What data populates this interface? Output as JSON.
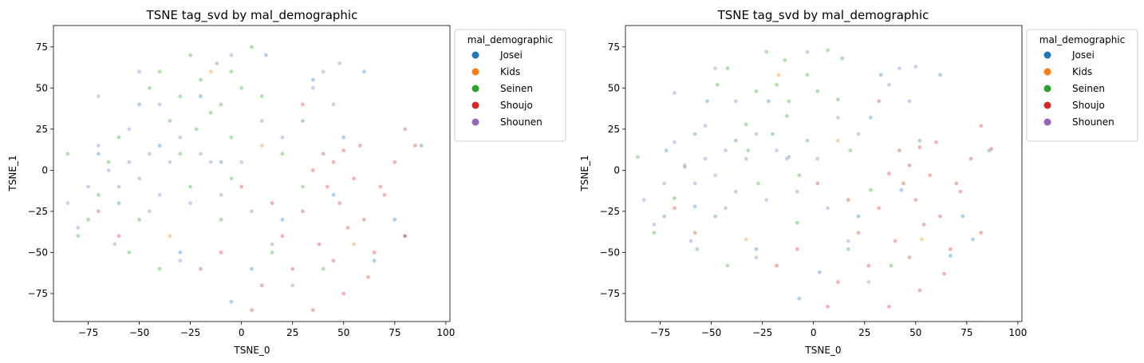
{
  "chart_data": [
    {
      "type": "scatter",
      "title": "TSNE tag_svd by mal_demographic",
      "xlabel": "TSNE_0",
      "ylabel": "TSNE_1",
      "xlim": [
        -92,
        102
      ],
      "ylim": [
        -92,
        88
      ],
      "xticks": [
        -75,
        -50,
        -25,
        0,
        25,
        50,
        75,
        100
      ],
      "yticks": [
        -75,
        -50,
        -25,
        0,
        25,
        50,
        75
      ],
      "grid": false,
      "legend": {
        "title": "mal_demographic",
        "placement": "outside-top-right"
      },
      "series": [
        {
          "name": "Josei",
          "color": "#1f77b4",
          "points": [
            [
              -10,
              5
            ],
            [
              20,
              -30
            ],
            [
              -40,
              15
            ],
            [
              35,
              55
            ],
            [
              5,
              -60
            ],
            [
              -60,
              -20
            ],
            [
              50,
              20
            ],
            [
              80,
              -40
            ],
            [
              -20,
              45
            ],
            [
              65,
              -55
            ],
            [
              12,
              70
            ],
            [
              -70,
              10
            ],
            [
              45,
              -15
            ],
            [
              30,
              30
            ],
            [
              -5,
              -80
            ],
            [
              88,
              15
            ],
            [
              -30,
              -50
            ],
            [
              60,
              60
            ],
            [
              -50,
              40
            ],
            [
              75,
              -30
            ]
          ]
        },
        {
          "name": "Kids",
          "color": "#ff7f0e",
          "points": [
            [
              -35,
              -40
            ],
            [
              10,
              15
            ],
            [
              55,
              -45
            ],
            [
              -15,
              60
            ]
          ]
        },
        {
          "name": "Seinen",
          "color": "#2ca02c",
          "points": [
            [
              -30,
              45
            ],
            [
              -20,
              55
            ],
            [
              -10,
              40
            ],
            [
              -25,
              70
            ],
            [
              -5,
              60
            ],
            [
              -40,
              60
            ],
            [
              -15,
              35
            ],
            [
              0,
              50
            ],
            [
              -35,
              30
            ],
            [
              5,
              75
            ],
            [
              -45,
              50
            ],
            [
              -22,
              25
            ],
            [
              -12,
              65
            ],
            [
              10,
              45
            ],
            [
              -60,
              20
            ],
            [
              -75,
              -30
            ],
            [
              -70,
              -15
            ],
            [
              -55,
              -50
            ],
            [
              -40,
              -60
            ],
            [
              -10,
              -30
            ],
            [
              15,
              -50
            ],
            [
              -80,
              -40
            ],
            [
              -65,
              5
            ],
            [
              30,
              -10
            ],
            [
              -50,
              -30
            ],
            [
              20,
              10
            ],
            [
              -25,
              -10
            ],
            [
              -5,
              -5
            ],
            [
              40,
              -60
            ],
            [
              -30,
              10
            ],
            [
              -85,
              10
            ],
            [
              -5,
              20
            ]
          ]
        },
        {
          "name": "Shoujo",
          "color": "#d62728",
          "points": [
            [
              40,
              10
            ],
            [
              45,
              5
            ],
            [
              50,
              12
            ],
            [
              35,
              0
            ],
            [
              55,
              -5
            ],
            [
              42,
              -10
            ],
            [
              48,
              -20
            ],
            [
              30,
              -25
            ],
            [
              60,
              -30
            ],
            [
              52,
              -35
            ],
            [
              38,
              -45
            ],
            [
              65,
              -50
            ],
            [
              80,
              -40
            ],
            [
              75,
              5
            ],
            [
              85,
              15
            ],
            [
              80,
              25
            ],
            [
              70,
              -15
            ],
            [
              58,
              15
            ],
            [
              62,
              -65
            ],
            [
              45,
              -55
            ],
            [
              25,
              -60
            ],
            [
              20,
              -40
            ],
            [
              15,
              -20
            ],
            [
              50,
              -75
            ],
            [
              10,
              -70
            ],
            [
              5,
              -85
            ],
            [
              0,
              -10
            ],
            [
              -10,
              -50
            ],
            [
              -20,
              -60
            ],
            [
              -60,
              -40
            ],
            [
              -70,
              -25
            ],
            [
              30,
              40
            ],
            [
              35,
              -85
            ],
            [
              68,
              -10
            ]
          ]
        },
        {
          "name": "Shounen",
          "color": "#9467bd",
          "points": [
            [
              -65,
              0
            ],
            [
              -55,
              5
            ],
            [
              -50,
              -5
            ],
            [
              -60,
              -10
            ],
            [
              -45,
              10
            ],
            [
              -40,
              -15
            ],
            [
              -70,
              15
            ],
            [
              -35,
              5
            ],
            [
              -30,
              20
            ],
            [
              -55,
              25
            ],
            [
              -75,
              -10
            ],
            [
              -45,
              -25
            ],
            [
              -25,
              -20
            ],
            [
              -15,
              5
            ],
            [
              -20,
              10
            ],
            [
              10,
              30
            ],
            [
              20,
              20
            ],
            [
              -10,
              -15
            ],
            [
              5,
              -25
            ],
            [
              35,
              50
            ],
            [
              40,
              60
            ],
            [
              -40,
              40
            ],
            [
              -50,
              60
            ],
            [
              -70,
              45
            ],
            [
              -80,
              -35
            ],
            [
              -30,
              -55
            ],
            [
              15,
              -45
            ],
            [
              -85,
              -20
            ],
            [
              -5,
              70
            ],
            [
              25,
              -70
            ],
            [
              45,
              40
            ],
            [
              48,
              65
            ],
            [
              -62,
              -45
            ],
            [
              0,
              5
            ]
          ]
        }
      ]
    },
    {
      "type": "scatter",
      "title": "TSNE tag_svd by mal_demographic",
      "xlabel": "TSNE_0",
      "ylabel": "TSNE_1",
      "xlim": [
        -92,
        102
      ],
      "ylim": [
        -92,
        88
      ],
      "xticks": [
        -75,
        -50,
        -25,
        0,
        25,
        50,
        75,
        100
      ],
      "yticks": [
        -75,
        -50,
        -25,
        0,
        25,
        50,
        75
      ],
      "grid": false,
      "legend": {
        "title": "mal_demographic",
        "placement": "outside-top-right"
      },
      "series": [
        {
          "name": "Josei",
          "color": "#1f77b4",
          "points": [
            [
              -12,
              8
            ],
            [
              22,
              -28
            ],
            [
              -38,
              18
            ],
            [
              33,
              58
            ],
            [
              3,
              -62
            ],
            [
              -58,
              -22
            ],
            [
              52,
              18
            ],
            [
              78,
              -42
            ],
            [
              -22,
              42
            ],
            [
              67,
              -52
            ],
            [
              14,
              68
            ],
            [
              -72,
              12
            ],
            [
              43,
              -12
            ],
            [
              28,
              32
            ],
            [
              -7,
              -78
            ],
            [
              86,
              12
            ],
            [
              -28,
              -48
            ],
            [
              62,
              58
            ],
            [
              -52,
              42
            ],
            [
              73,
              -28
            ]
          ]
        },
        {
          "name": "Kids",
          "color": "#ff7f0e",
          "points": [
            [
              -33,
              -42
            ],
            [
              12,
              18
            ],
            [
              53,
              -42
            ],
            [
              -17,
              58
            ]
          ]
        },
        {
          "name": "Seinen",
          "color": "#2ca02c",
          "points": [
            [
              -28,
              48
            ],
            [
              -18,
              52
            ],
            [
              -12,
              42
            ],
            [
              -23,
              72
            ],
            [
              -3,
              58
            ],
            [
              -42,
              62
            ],
            [
              -13,
              33
            ],
            [
              2,
              48
            ],
            [
              -33,
              28
            ],
            [
              7,
              73
            ],
            [
              -47,
              52
            ],
            [
              -20,
              22
            ],
            [
              -14,
              67
            ],
            [
              12,
              43
            ],
            [
              -58,
              22
            ],
            [
              -73,
              -28
            ],
            [
              -68,
              -17
            ],
            [
              -57,
              -48
            ],
            [
              -42,
              -58
            ],
            [
              -8,
              -32
            ],
            [
              17,
              -48
            ],
            [
              -78,
              -38
            ],
            [
              -63,
              3
            ],
            [
              28,
              -12
            ],
            [
              -48,
              -28
            ],
            [
              18,
              12
            ],
            [
              -27,
              -8
            ],
            [
              -7,
              -3
            ],
            [
              38,
              -58
            ],
            [
              -32,
              12
            ],
            [
              -86,
              8
            ],
            [
              -3,
              18
            ]
          ]
        },
        {
          "name": "Shoujo",
          "color": "#d62728",
          "points": [
            [
              42,
              12
            ],
            [
              47,
              3
            ],
            [
              52,
              14
            ],
            [
              37,
              -2
            ],
            [
              57,
              -3
            ],
            [
              44,
              -8
            ],
            [
              50,
              -18
            ],
            [
              32,
              -23
            ],
            [
              62,
              -28
            ],
            [
              54,
              -33
            ],
            [
              40,
              -43
            ],
            [
              67,
              -48
            ],
            [
              82,
              -38
            ],
            [
              77,
              7
            ],
            [
              87,
              13
            ],
            [
              82,
              27
            ],
            [
              72,
              -13
            ],
            [
              60,
              17
            ],
            [
              64,
              -63
            ],
            [
              47,
              -53
            ],
            [
              27,
              -58
            ],
            [
              22,
              -38
            ],
            [
              17,
              -18
            ],
            [
              52,
              -73
            ],
            [
              12,
              -68
            ],
            [
              7,
              -83
            ],
            [
              2,
              -8
            ],
            [
              -8,
              -48
            ],
            [
              -18,
              -58
            ],
            [
              -58,
              -38
            ],
            [
              -68,
              -23
            ],
            [
              32,
              42
            ],
            [
              37,
              -83
            ],
            [
              70,
              -8
            ]
          ]
        },
        {
          "name": "Shounen",
          "color": "#9467bd",
          "points": [
            [
              -63,
              2
            ],
            [
              -53,
              7
            ],
            [
              -48,
              -3
            ],
            [
              -58,
              -8
            ],
            [
              -43,
              12
            ],
            [
              -38,
              -13
            ],
            [
              -68,
              17
            ],
            [
              -33,
              7
            ],
            [
              -28,
              22
            ],
            [
              -53,
              27
            ],
            [
              -73,
              -8
            ],
            [
              -43,
              -23
            ],
            [
              -23,
              -18
            ],
            [
              -13,
              7
            ],
            [
              -18,
              12
            ],
            [
              12,
              32
            ],
            [
              22,
              22
            ],
            [
              -8,
              -13
            ],
            [
              7,
              -23
            ],
            [
              37,
              52
            ],
            [
              42,
              62
            ],
            [
              -38,
              42
            ],
            [
              -48,
              62
            ],
            [
              -68,
              47
            ],
            [
              -78,
              -33
            ],
            [
              -28,
              -53
            ],
            [
              17,
              -43
            ],
            [
              -83,
              -18
            ],
            [
              -3,
              72
            ],
            [
              27,
              -68
            ],
            [
              47,
              42
            ],
            [
              50,
              63
            ],
            [
              -60,
              -43
            ],
            [
              2,
              7
            ]
          ]
        }
      ]
    }
  ]
}
